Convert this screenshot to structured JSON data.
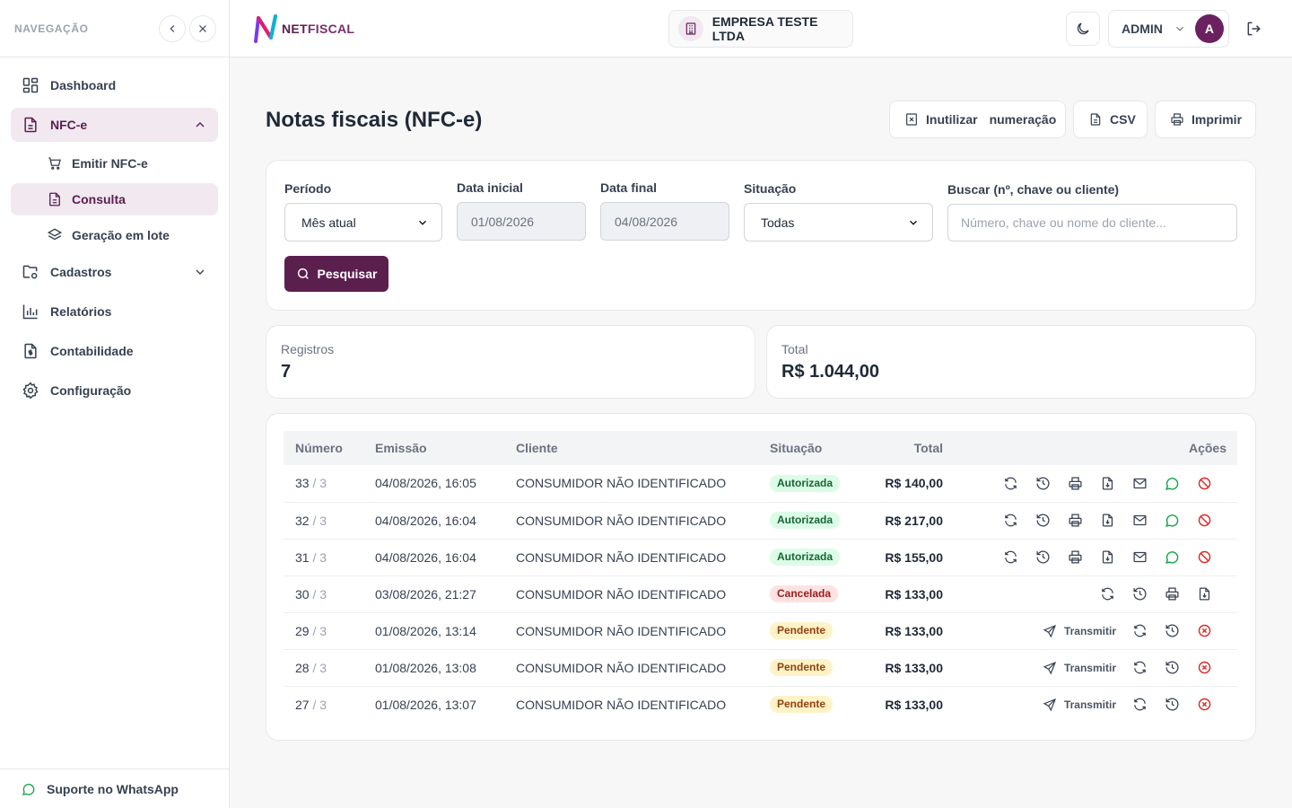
{
  "sidebar": {
    "title": "NAVEGAÇÃO",
    "items": [
      {
        "label": "Dashboard",
        "icon": "dashboard-icon"
      },
      {
        "label": "NFC-e",
        "icon": "document-icon"
      },
      {
        "label": "Cadastros",
        "icon": "folder-settings-icon"
      },
      {
        "label": "Relatórios",
        "icon": "bar-chart-icon"
      },
      {
        "label": "Contabilidade",
        "icon": "file-dollar-icon"
      },
      {
        "label": "Configuração",
        "icon": "gear-icon"
      }
    ],
    "nfce_sub": [
      {
        "label": "Emitir NFC-e",
        "icon": "cart-icon"
      },
      {
        "label": "Consulta",
        "icon": "document-icon"
      },
      {
        "label": "Geração em lote",
        "icon": "layers-icon"
      }
    ],
    "footer": "Suporte no WhatsApp"
  },
  "topbar": {
    "logo_a": "NET",
    "logo_b": "FISCAL",
    "company": "EMPRESA TESTE LTDA",
    "user": "ADMIN",
    "avatar": "A"
  },
  "page": {
    "title": "Notas fiscais (NFC-e)",
    "buttons": {
      "inutilizar": "Inutilizar",
      "numeracao": "numeração",
      "csv": "CSV",
      "imprimir": "Imprimir"
    }
  },
  "filters": {
    "periodo_label": "Período",
    "periodo_value": "Mês atual",
    "data_inicial_label": "Data inicial",
    "data_inicial_value": "01/08/2026",
    "data_final_label": "Data final",
    "data_final_value": "04/08/2026",
    "situacao_label": "Situação",
    "situacao_value": "Todas",
    "buscar_label": "Buscar (nº, chave ou cliente)",
    "buscar_placeholder": "Número, chave ou nome do cliente...",
    "pesquisar": "Pesquisar"
  },
  "stats": {
    "registros_label": "Registros",
    "registros_value": "7",
    "total_label": "Total",
    "total_value": "R$ 1.044,00"
  },
  "table": {
    "headers": {
      "numero": "Número",
      "emissao": "Emissão",
      "cliente": "Cliente",
      "situacao": "Situação",
      "total": "Total",
      "acoes": "Ações"
    },
    "rows": [
      {
        "num": "33",
        "serie": "/ 3",
        "emissao": "04/08/2026, 16:05",
        "cliente": "CONSUMIDOR NÃO IDENTIFICADO",
        "situacao": "Autorizada",
        "total": "R$ 140,00"
      },
      {
        "num": "32",
        "serie": "/ 3",
        "emissao": "04/08/2026, 16:04",
        "cliente": "CONSUMIDOR NÃO IDENTIFICADO",
        "situacao": "Autorizada",
        "total": "R$ 217,00"
      },
      {
        "num": "31",
        "serie": "/ 3",
        "emissao": "04/08/2026, 16:04",
        "cliente": "CONSUMIDOR NÃO IDENTIFICADO",
        "situacao": "Autorizada",
        "total": "R$ 155,00"
      },
      {
        "num": "30",
        "serie": "/ 3",
        "emissao": "03/08/2026, 21:27",
        "cliente": "CONSUMIDOR NÃO IDENTIFICADO",
        "situacao": "Cancelada",
        "total": "R$ 133,00"
      },
      {
        "num": "29",
        "serie": "/ 3",
        "emissao": "01/08/2026, 13:14",
        "cliente": "CONSUMIDOR NÃO IDENTIFICADO",
        "situacao": "Pendente",
        "total": "R$ 133,00"
      },
      {
        "num": "28",
        "serie": "/ 3",
        "emissao": "01/08/2026, 13:08",
        "cliente": "CONSUMIDOR NÃO IDENTIFICADO",
        "situacao": "Pendente",
        "total": "R$ 133,00"
      },
      {
        "num": "27",
        "serie": "/ 3",
        "emissao": "01/08/2026, 13:07",
        "cliente": "CONSUMIDOR NÃO IDENTIFICADO",
        "situacao": "Pendente",
        "total": "R$ 133,00"
      }
    ],
    "transmitir_label": "Transmitir"
  },
  "colors": {
    "brand": "#5b1f4e",
    "ok": "#16a34a",
    "danger": "#dc2626",
    "warn": "#92400e"
  }
}
